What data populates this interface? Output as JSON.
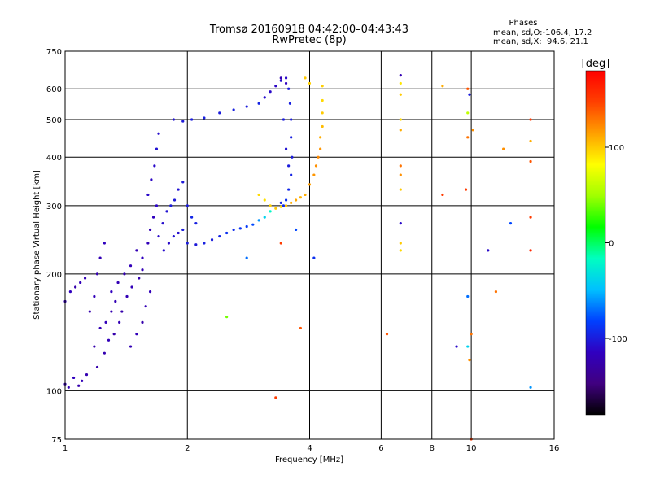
{
  "chart_data": {
    "type": "scatter",
    "title": "Tromsø 20160918 04:42:00–04:43:43",
    "subtitle": "RwPretec (8p)",
    "xlabel": "Frequency [MHz]",
    "ylabel": "Stationary phase Virtual Height [km]",
    "x_scale": "log",
    "y_scale": "log",
    "xlim": [
      1,
      16
    ],
    "ylim": [
      75,
      750
    ],
    "x_ticks": [
      1,
      2,
      4,
      6,
      8,
      10,
      16
    ],
    "y_ticks": [
      75,
      100,
      200,
      300,
      400,
      500,
      600,
      750
    ],
    "grid": true,
    "stats": {
      "header": "Phases",
      "line_o": "mean, sd,O:-106.4, 17.2",
      "line_x": "mean, sd,X:  94.6, 21.1"
    },
    "colorbar": {
      "label": "[deg]",
      "range": [
        -180,
        180
      ],
      "ticks": [
        100,
        0,
        -100
      ],
      "colors": [
        "#000000",
        "#400080",
        "#3000c0",
        "#0040ff",
        "#00c0ff",
        "#00ffc0",
        "#00ff00",
        "#a0ff00",
        "#ffff00",
        "#ffa000",
        "#ff4000",
        "#ff0000"
      ]
    },
    "series": [
      {
        "points": [
          [
            1.0,
            104,
            -125
          ],
          [
            1.02,
            102,
            -120
          ],
          [
            1.05,
            108,
            -115
          ],
          [
            1.08,
            103,
            -125
          ],
          [
            1.1,
            106,
            -118
          ],
          [
            1.13,
            110,
            -122
          ],
          [
            1.0,
            170,
            -120
          ],
          [
            1.03,
            180,
            -115
          ],
          [
            1.06,
            185,
            -125
          ],
          [
            1.09,
            190,
            -118
          ],
          [
            1.12,
            195,
            -120
          ],
          [
            1.15,
            160,
            -125
          ],
          [
            1.18,
            175,
            -118
          ],
          [
            1.2,
            200,
            -122
          ],
          [
            1.22,
            220,
            -120
          ],
          [
            1.25,
            240,
            -115
          ],
          [
            1.18,
            130,
            -125
          ],
          [
            1.22,
            145,
            -120
          ],
          [
            1.26,
            150,
            -118
          ],
          [
            1.3,
            160,
            -122
          ],
          [
            1.33,
            170,
            -120
          ],
          [
            1.2,
            115,
            -125
          ],
          [
            1.25,
            125,
            -122
          ],
          [
            1.28,
            135,
            -118
          ],
          [
            1.32,
            140,
            -125
          ],
          [
            1.36,
            150,
            -120
          ],
          [
            1.3,
            180,
            -115
          ],
          [
            1.35,
            190,
            -120
          ],
          [
            1.4,
            200,
            -122
          ],
          [
            1.45,
            210,
            -118
          ],
          [
            1.5,
            230,
            -120
          ],
          [
            1.38,
            160,
            -125
          ],
          [
            1.42,
            175,
            -120
          ],
          [
            1.46,
            185,
            -118
          ],
          [
            1.52,
            195,
            -122
          ],
          [
            1.55,
            205,
            -120
          ],
          [
            1.45,
            130,
            -120
          ],
          [
            1.5,
            140,
            -118
          ],
          [
            1.55,
            150,
            -125
          ],
          [
            1.58,
            165,
            -120
          ],
          [
            1.62,
            180,
            -118
          ],
          [
            1.55,
            220,
            -115
          ],
          [
            1.6,
            240,
            -118
          ],
          [
            1.62,
            260,
            -120
          ],
          [
            1.65,
            280,
            -115
          ],
          [
            1.68,
            300,
            -112
          ],
          [
            1.6,
            320,
            -110
          ],
          [
            1.63,
            350,
            -112
          ],
          [
            1.66,
            380,
            -110
          ],
          [
            1.68,
            420,
            -105
          ],
          [
            1.7,
            460,
            -108
          ],
          [
            1.7,
            250,
            -110
          ],
          [
            1.74,
            270,
            -108
          ],
          [
            1.78,
            290,
            -105
          ],
          [
            1.82,
            300,
            -100
          ],
          [
            1.86,
            310,
            -102
          ],
          [
            1.75,
            230,
            -108
          ],
          [
            1.8,
            240,
            -110
          ],
          [
            1.85,
            250,
            -105
          ],
          [
            1.9,
            255,
            -108
          ],
          [
            1.95,
            260,
            -100
          ],
          [
            1.9,
            330,
            -105
          ],
          [
            1.95,
            345,
            -102
          ],
          [
            2.0,
            300,
            -100
          ],
          [
            2.05,
            280,
            -95
          ],
          [
            2.1,
            270,
            -98
          ],
          [
            2.0,
            240,
            -100
          ],
          [
            2.1,
            238,
            -102
          ],
          [
            2.2,
            240,
            -98
          ],
          [
            2.3,
            245,
            -100
          ],
          [
            2.4,
            250,
            -96
          ],
          [
            2.5,
            255,
            -90
          ],
          [
            2.6,
            260,
            -92
          ],
          [
            2.7,
            262,
            -88
          ],
          [
            2.8,
            265,
            -85
          ],
          [
            2.9,
            268,
            -80
          ],
          [
            3.0,
            275,
            -60
          ],
          [
            3.1,
            280,
            -40
          ],
          [
            3.2,
            290,
            -20
          ],
          [
            1.85,
            500,
            -105
          ],
          [
            1.95,
            495,
            -102
          ],
          [
            2.05,
            500,
            -100
          ],
          [
            2.2,
            505,
            -98
          ],
          [
            2.4,
            520,
            -100
          ],
          [
            2.6,
            530,
            -98
          ],
          [
            2.8,
            540,
            -100
          ],
          [
            3.0,
            550,
            -96
          ],
          [
            3.1,
            570,
            -108
          ],
          [
            3.2,
            590,
            -110
          ],
          [
            3.3,
            610,
            -112
          ],
          [
            3.4,
            630,
            -108
          ],
          [
            3.5,
            640,
            -110
          ],
          [
            3.55,
            600,
            -100
          ],
          [
            3.58,
            550,
            -98
          ],
          [
            3.6,
            500,
            -100
          ],
          [
            3.6,
            450,
            -98
          ],
          [
            3.62,
            400,
            -100
          ],
          [
            3.6,
            360,
            -96
          ],
          [
            3.55,
            330,
            -94
          ],
          [
            3.5,
            310,
            -90
          ],
          [
            3.45,
            300,
            -92
          ],
          [
            3.4,
            305,
            -95
          ],
          [
            3.4,
            640,
            -120
          ],
          [
            3.5,
            620,
            -115
          ],
          [
            3.45,
            500,
            -100
          ],
          [
            3.5,
            420,
            -105
          ],
          [
            3.55,
            380,
            -100
          ],
          [
            3.0,
            320,
            95
          ],
          [
            3.1,
            310,
            92
          ],
          [
            3.2,
            300,
            98
          ],
          [
            3.3,
            295,
            100
          ],
          [
            3.4,
            298,
            96
          ],
          [
            3.5,
            300,
            105
          ],
          [
            3.6,
            305,
            110
          ],
          [
            3.7,
            310,
            112
          ],
          [
            3.8,
            315,
            108
          ],
          [
            3.9,
            320,
            110
          ],
          [
            4.0,
            340,
            115
          ],
          [
            4.1,
            360,
            118
          ],
          [
            4.15,
            380,
            120
          ],
          [
            4.2,
            400,
            122
          ],
          [
            4.25,
            420,
            118
          ],
          [
            4.25,
            450,
            110
          ],
          [
            4.3,
            480,
            105
          ],
          [
            4.3,
            520,
            100
          ],
          [
            4.3,
            560,
            95
          ],
          [
            4.3,
            610,
            98
          ],
          [
            3.9,
            640,
            100
          ],
          [
            4.0,
            620,
            98
          ],
          [
            6.7,
            650,
            -120
          ],
          [
            6.7,
            620,
            90
          ],
          [
            6.7,
            580,
            100
          ],
          [
            6.7,
            500,
            95
          ],
          [
            6.7,
            470,
            110
          ],
          [
            6.7,
            380,
            130
          ],
          [
            6.7,
            360,
            120
          ],
          [
            6.7,
            330,
            100
          ],
          [
            6.7,
            270,
            -110
          ],
          [
            6.7,
            240,
            100
          ],
          [
            6.7,
            230,
            95
          ],
          [
            8.5,
            610,
            110
          ],
          [
            9.8,
            600,
            140
          ],
          [
            9.9,
            580,
            -100
          ],
          [
            9.8,
            450,
            130
          ],
          [
            9.7,
            330,
            150
          ],
          [
            9.8,
            520,
            60
          ],
          [
            10.1,
            470,
            120
          ],
          [
            8.5,
            320,
            150
          ],
          [
            12.0,
            420,
            120
          ],
          [
            12.5,
            270,
            -80
          ],
          [
            14.0,
            500,
            150
          ],
          [
            14.0,
            440,
            110
          ],
          [
            14.0,
            390,
            140
          ],
          [
            14.0,
            280,
            150
          ],
          [
            14.0,
            230,
            160
          ],
          [
            11.0,
            230,
            -110
          ],
          [
            11.5,
            180,
            130
          ],
          [
            9.8,
            175,
            -70
          ],
          [
            9.8,
            130,
            -40
          ],
          [
            10.0,
            140,
            130
          ],
          [
            9.9,
            120,
            120
          ],
          [
            9.2,
            130,
            -110
          ],
          [
            14.0,
            102,
            -60
          ],
          [
            10.0,
            75,
            150
          ],
          [
            6.2,
            140,
            140
          ],
          [
            4.1,
            220,
            -90
          ],
          [
            3.7,
            260,
            -80
          ],
          [
            3.8,
            145,
            140
          ],
          [
            3.3,
            96,
            150
          ],
          [
            2.5,
            155,
            40
          ],
          [
            3.4,
            240,
            150
          ],
          [
            2.8,
            220,
            -70
          ]
        ]
      }
    ]
  }
}
